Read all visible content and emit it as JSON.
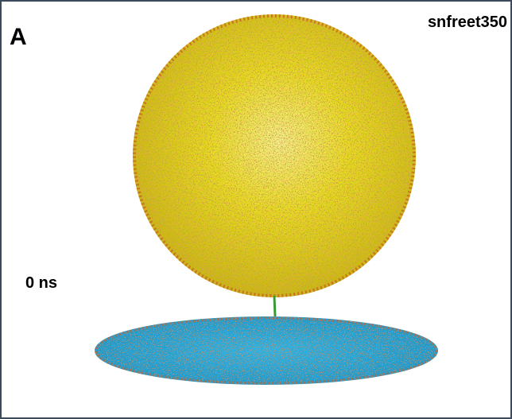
{
  "panel_label": "A",
  "system_name": "snfreet350",
  "time_label": "0 ns"
}
